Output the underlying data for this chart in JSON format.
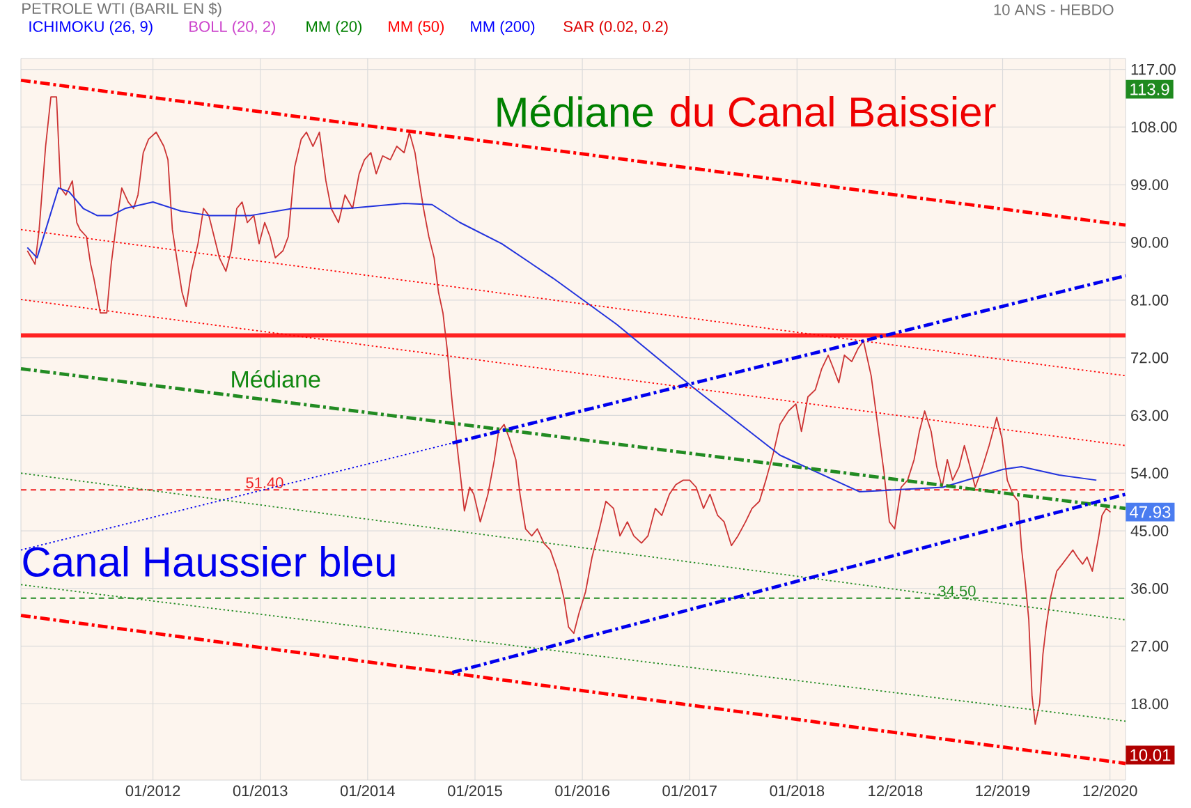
{
  "chart_data": {
    "type": "line",
    "title": "PETROLE WTI (BARIL EN $)",
    "subtitle": "10 ANS - HEBDO",
    "xlim": [
      "2010-10-09",
      "2021-01-23"
    ],
    "ylim": [
      6.1,
      118.7
    ],
    "xticks": [
      {
        "value": "2012-01-01",
        "label": "01/2012"
      },
      {
        "value": "2013-01-01",
        "label": "01/2013"
      },
      {
        "value": "2014-01-01",
        "label": "01/2014"
      },
      {
        "value": "2015-01-01",
        "label": "01/2015"
      },
      {
        "value": "2016-01-01",
        "label": "01/2016"
      },
      {
        "value": "2017-01-01",
        "label": "01/2017"
      },
      {
        "value": "2018-01-01",
        "label": "01/2018"
      },
      {
        "value": "2018-12-01",
        "label": "12/2018"
      },
      {
        "value": "2019-12-01",
        "label": "12/2019"
      },
      {
        "value": "2020-12-01",
        "label": "12/2020"
      }
    ],
    "yticks": [
      {
        "value": 18,
        "label": "18.00"
      },
      {
        "value": 27,
        "label": "27.00"
      },
      {
        "value": 36,
        "label": "36.00"
      },
      {
        "value": 45,
        "label": "45.00"
      },
      {
        "value": 54,
        "label": "54.00"
      },
      {
        "value": 63,
        "label": "63.00"
      },
      {
        "value": 72,
        "label": "72.00"
      },
      {
        "value": 81,
        "label": "81.00"
      },
      {
        "value": 90,
        "label": "90.00"
      },
      {
        "value": 99,
        "label": "99.00"
      },
      {
        "value": 108,
        "label": "108.00"
      },
      {
        "value": 117,
        "label": "117.00"
      }
    ],
    "grid": true,
    "series": [
      {
        "color": "#cc3333",
        "line_style": "solid",
        "x": [
          "2010-10-31",
          "2010-11-26",
          "2010-12-10",
          "2011-01-01",
          "2011-01-19",
          "2011-02-07",
          "2011-02-21",
          "2011-03-11",
          "2011-04-02",
          "2011-04-17",
          "2011-04-28",
          "2011-05-20",
          "2011-06-03",
          "2011-06-14",
          "2011-07-06",
          "2011-07-28",
          "2011-08-12",
          "2011-08-30",
          "2011-09-17",
          "2011-10-09",
          "2011-10-27",
          "2011-11-11",
          "2011-11-29",
          "2011-12-17",
          "2012-01-12",
          "2012-02-07",
          "2012-02-21",
          "2012-03-08",
          "2012-03-26",
          "2012-04-10",
          "2012-04-24",
          "2012-05-12",
          "2012-06-03",
          "2012-06-22",
          "2012-07-10",
          "2012-07-28",
          "2012-08-15",
          "2012-09-06",
          "2012-09-24",
          "2012-10-13",
          "2012-10-31",
          "2012-11-18",
          "2012-12-10",
          "2012-12-28",
          "2013-01-16",
          "2013-02-03",
          "2013-02-21",
          "2013-03-19",
          "2013-04-06",
          "2013-04-28",
          "2013-05-20",
          "2013-06-07",
          "2013-06-29",
          "2013-07-21",
          "2013-08-12",
          "2013-08-30",
          "2013-09-24",
          "2013-10-16",
          "2013-11-11",
          "2013-12-03",
          "2013-12-21",
          "2014-01-12",
          "2014-01-30",
          "2014-02-21",
          "2014-03-19",
          "2014-04-10",
          "2014-05-05",
          "2014-05-23",
          "2014-06-11",
          "2014-06-25",
          "2014-07-10",
          "2014-07-28",
          "2014-08-15",
          "2014-08-30",
          "2014-09-14",
          "2014-09-28",
          "2014-10-16",
          "2014-11-26",
          "2014-12-14",
          "2014-12-28",
          "2015-01-19",
          "2015-02-14",
          "2015-03-08",
          "2015-03-22",
          "2015-04-10",
          "2015-04-28",
          "2015-05-20",
          "2015-06-03",
          "2015-06-22",
          "2015-07-13",
          "2015-08-01",
          "2015-08-23",
          "2015-09-14",
          "2015-10-09",
          "2015-10-31",
          "2015-11-15",
          "2015-12-03",
          "2015-12-21",
          "2016-01-12",
          "2016-02-03",
          "2016-02-28",
          "2016-03-22",
          "2016-04-17",
          "2016-05-09",
          "2016-06-03",
          "2016-06-25",
          "2016-07-21",
          "2016-08-12",
          "2016-09-06",
          "2016-09-28",
          "2016-10-24",
          "2016-11-15",
          "2016-12-10",
          "2017-01-01",
          "2017-01-23",
          "2017-02-17",
          "2017-03-11",
          "2017-04-06",
          "2017-04-28",
          "2017-05-23",
          "2017-06-14",
          "2017-07-10",
          "2017-08-01",
          "2017-08-26",
          "2017-09-17",
          "2017-10-13",
          "2017-11-04",
          "2017-12-03",
          "2017-12-28",
          "2018-01-16",
          "2018-02-07",
          "2018-03-04",
          "2018-03-26",
          "2018-04-17",
          "2018-05-05",
          "2018-05-23",
          "2018-06-11",
          "2018-07-06",
          "2018-07-28",
          "2018-08-15",
          "2018-09-10",
          "2018-10-02",
          "2018-10-24",
          "2018-11-11",
          "2018-11-29",
          "2018-12-21",
          "2019-01-12",
          "2019-02-03",
          "2019-02-21",
          "2019-03-11",
          "2019-04-02",
          "2019-04-21",
          "2019-05-09",
          "2019-05-27",
          "2019-06-14",
          "2019-07-06",
          "2019-07-24",
          "2019-08-12",
          "2019-08-30",
          "2019-09-24",
          "2019-10-16",
          "2019-11-11",
          "2019-11-29",
          "2019-12-17",
          "2020-01-05",
          "2020-01-23",
          "2020-02-03",
          "2020-02-17",
          "2020-02-28",
          "2020-03-11",
          "2020-03-22",
          "2020-04-06",
          "2020-04-17",
          "2020-04-28",
          "2020-05-12",
          "2020-06-03",
          "2020-06-22",
          "2020-07-10",
          "2020-07-28",
          "2020-08-12",
          "2020-08-30",
          "2020-09-14",
          "2020-10-02",
          "2020-10-24",
          "2020-11-04",
          "2020-11-18",
          "2020-12-03"
        ],
        "values": [
          88.7,
          86.6,
          92.0,
          105.0,
          112.7,
          112.7,
          98.5,
          97.4,
          99.6,
          93.1,
          92.0,
          90.9,
          86.6,
          84.4,
          79.0,
          79.0,
          86.6,
          93.1,
          98.5,
          96.3,
          95.3,
          97.4,
          104.0,
          106.1,
          107.2,
          105.0,
          102.9,
          92.0,
          86.6,
          82.2,
          80.0,
          85.5,
          89.8,
          95.3,
          94.2,
          90.9,
          87.6,
          85.5,
          88.7,
          95.3,
          96.3,
          93.1,
          94.2,
          89.8,
          93.1,
          90.9,
          87.6,
          88.7,
          90.9,
          101.8,
          106.1,
          107.2,
          105.0,
          107.2,
          99.6,
          95.3,
          93.1,
          97.4,
          95.3,
          100.7,
          102.9,
          104.0,
          100.7,
          103.5,
          102.9,
          105.0,
          104.0,
          107.2,
          104.0,
          99.6,
          95.3,
          90.9,
          87.6,
          82.2,
          79.0,
          73.5,
          64.8,
          48.1,
          51.8,
          50.7,
          46.4,
          50.7,
          56.1,
          60.5,
          61.6,
          59.4,
          56.1,
          50.7,
          45.3,
          44.2,
          45.3,
          43.1,
          42.0,
          38.7,
          34.4,
          30.0,
          29.0,
          32.2,
          35.5,
          40.9,
          45.3,
          49.6,
          48.5,
          44.2,
          46.4,
          44.2,
          43.1,
          44.2,
          48.5,
          47.4,
          50.7,
          52.2,
          52.9,
          52.9,
          51.8,
          48.5,
          50.7,
          47.4,
          46.4,
          42.7,
          44.2,
          46.4,
          48.5,
          49.6,
          52.9,
          57.2,
          61.6,
          63.7,
          64.8,
          60.5,
          65.9,
          67.0,
          70.3,
          72.4,
          70.3,
          68.1,
          72.4,
          71.4,
          73.5,
          74.6,
          69.2,
          61.6,
          54.0,
          46.4,
          45.3,
          51.8,
          52.9,
          56.1,
          60.5,
          63.7,
          60.5,
          55.0,
          51.8,
          56.1,
          52.9,
          55.0,
          58.3,
          55.0,
          51.8,
          55.0,
          58.3,
          62.7,
          59.4,
          52.9,
          50.7,
          49.6,
          42.4,
          36.6,
          31.1,
          19.2,
          14.8,
          18.1,
          25.7,
          30.0,
          34.4,
          38.7,
          39.8,
          40.9,
          42.0,
          40.9,
          39.8,
          40.9,
          38.7,
          44.2,
          47.4,
          48.5,
          47.9
        ]
      },
      {
        "color": "#2233dd",
        "line_style": "solid",
        "x": [
          "2010-10-31",
          "2010-12-03",
          "2011-02-14",
          "2011-03-22",
          "2011-05-09",
          "2011-06-25",
          "2011-08-12",
          "2011-09-28",
          "2012-01-01",
          "2012-04-06",
          "2012-07-10",
          "2012-11-29",
          "2013-04-21",
          "2013-10-27",
          "2014-05-05",
          "2014-08-08",
          "2014-11-11",
          "2015-04-02",
          "2015-09-24",
          "2016-04-28",
          "2017-01-12",
          "2017-11-04",
          "2018-08-01",
          "2019-05-12",
          "2019-12-03",
          "2020-02-03",
          "2020-06-11",
          "2020-10-16"
        ],
        "values": [
          89.2,
          87.6,
          98.5,
          97.9,
          95.3,
          94.2,
          94.2,
          95.3,
          96.3,
          94.9,
          94.2,
          94.2,
          95.3,
          95.3,
          96.1,
          95.9,
          93.1,
          89.8,
          84.4,
          77.2,
          67.4,
          56.8,
          51.1,
          51.8,
          54.6,
          55.0,
          53.7,
          52.9
        ]
      },
      {
        "color": "#ff0000",
        "line_style": "dashed",
        "x": [
          "2010-10-09",
          "2021-01-23"
        ],
        "values": [
          115.3,
          92.7
        ]
      },
      {
        "color": "#ff0000",
        "line_style": "dotted",
        "x": [
          "2010-10-09",
          "2021-01-23"
        ],
        "values": [
          92.0,
          69.2
        ]
      },
      {
        "color": "#ff0000",
        "line_style": "dotted",
        "x": [
          "2010-10-09",
          "2021-01-23"
        ],
        "values": [
          81.1,
          58.3
        ]
      },
      {
        "color": "#228b22",
        "line_style": "dashed",
        "x": [
          "2010-10-09",
          "2021-01-23"
        ],
        "values": [
          70.3,
          48.5
        ]
      },
      {
        "color": "#228b22",
        "line_style": "dotted",
        "x": [
          "2010-10-09",
          "2021-01-23"
        ],
        "values": [
          54.0,
          31.1
        ]
      },
      {
        "color": "#228b22",
        "line_style": "dotted",
        "x": [
          "2010-10-09",
          "2021-01-23"
        ],
        "values": [
          36.6,
          15.3
        ]
      },
      {
        "color": "#ff0000",
        "line_style": "dashed",
        "x": [
          "2010-10-09",
          "2021-01-23"
        ],
        "values": [
          31.8,
          8.7
        ]
      },
      {
        "color": "#0000ee",
        "line_style": "dotted",
        "x": [
          "2010-10-09",
          "2014-10-16"
        ],
        "values": [
          42.0,
          58.7
        ]
      },
      {
        "color": "#0000ee",
        "line_style": "dashed",
        "x": [
          "2014-10-16",
          "2021-01-23"
        ],
        "values": [
          58.7,
          84.8
        ]
      },
      {
        "color": "#0000ee",
        "line_style": "dashed",
        "x": [
          "2014-10-16",
          "2021-01-23"
        ],
        "values": [
          22.9,
          50.7
        ]
      }
    ],
    "ref_lines": [
      {
        "axis": "y",
        "value": 75.5,
        "color": "#ff2222",
        "line_style": "solid"
      },
      {
        "axis": "y",
        "value": 51.4,
        "label": "51.40",
        "color": "#ee2222",
        "line_style": "dashed"
      },
      {
        "axis": "y",
        "value": 34.5,
        "label": "34.50",
        "color": "#228b22",
        "line_style": "dashed"
      }
    ],
    "annotations": [
      "ICHIMOKU (26, 9)",
      "BOLL (20, 2)",
      "MM (20)",
      "MM (50)",
      "MM (200)",
      "SAR (0.02, 0.2)",
      "Médiane",
      "du Canal Baissier",
      "Médiane",
      "Canal Haussier bleu",
      {
        "text": "113.9",
        "y": 113.9
      },
      {
        "text": "47.93",
        "y": 47.93
      },
      {
        "text": "10.01",
        "y": 10.01
      }
    ]
  }
}
